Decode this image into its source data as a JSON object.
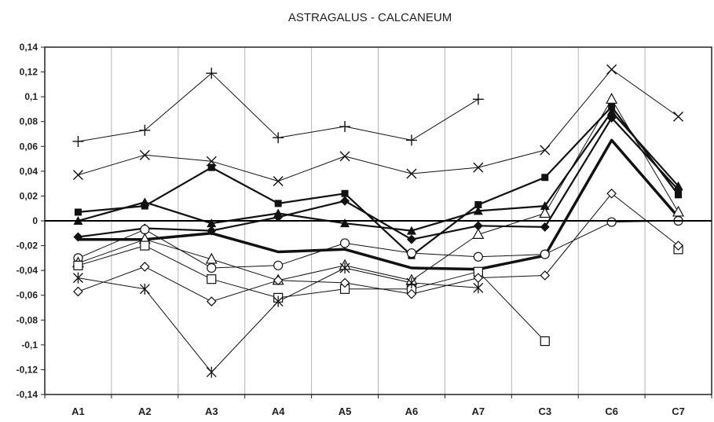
{
  "chart_data": {
    "type": "line",
    "title": "ASTRAGALUS - CALCANEUM",
    "xlabel": "",
    "ylabel": "",
    "categories": [
      "A1",
      "A2",
      "A3",
      "A4",
      "A5",
      "A6",
      "A7",
      "C3",
      "C6",
      "C7"
    ],
    "ylim": [
      -0.14,
      0.14
    ],
    "yticks": [
      -0.14,
      -0.12,
      -0.1,
      -0.08,
      -0.06,
      -0.04,
      -0.02,
      0,
      0.02,
      0.04,
      0.06,
      0.08,
      0.1,
      0.12,
      0.14
    ],
    "grid": "vertical",
    "legend": "none",
    "series": [
      {
        "marker": "plus",
        "width": 1,
        "values": [
          0.064,
          0.073,
          0.119,
          0.067,
          0.076,
          0.065,
          0.098,
          null,
          null,
          null
        ]
      },
      {
        "marker": "x",
        "width": 1,
        "values": [
          0.037,
          0.053,
          0.048,
          0.032,
          0.052,
          0.038,
          0.043,
          0.057,
          0.122,
          0.084
        ]
      },
      {
        "marker": "square-filled",
        "width": 2.2,
        "values": [
          0.007,
          0.012,
          0.043,
          0.014,
          0.022,
          -0.028,
          0.013,
          0.035,
          0.092,
          0.021
        ]
      },
      {
        "marker": "triangle-filled",
        "width": 2.2,
        "values": [
          0.0,
          0.015,
          -0.002,
          0.006,
          -0.002,
          -0.008,
          0.008,
          0.012,
          0.088,
          0.028
        ]
      },
      {
        "marker": "diamond-filled",
        "width": 2.2,
        "values": [
          -0.013,
          -0.006,
          -0.008,
          0.003,
          0.016,
          -0.015,
          -0.004,
          -0.005,
          0.083,
          0.025
        ]
      },
      {
        "marker": "none",
        "width": 3.5,
        "values": [
          -0.015,
          -0.015,
          -0.01,
          -0.025,
          -0.023,
          -0.038,
          -0.039,
          -0.028,
          0.065,
          0.003
        ]
      },
      {
        "marker": "circle-open",
        "width": 1,
        "values": [
          -0.03,
          -0.007,
          -0.038,
          -0.036,
          -0.018,
          -0.026,
          -0.029,
          -0.027,
          -0.001,
          0.0
        ]
      },
      {
        "marker": "triangle-open",
        "width": 1,
        "values": [
          -0.034,
          -0.015,
          -0.031,
          -0.048,
          -0.036,
          -0.048,
          -0.011,
          0.006,
          0.098,
          0.007
        ]
      },
      {
        "marker": "square-open",
        "width": 1,
        "values": [
          -0.036,
          -0.02,
          -0.047,
          -0.062,
          -0.055,
          -0.055,
          -0.041,
          -0.097,
          null,
          -0.023
        ]
      },
      {
        "marker": "diamond-open",
        "width": 1,
        "values": [
          -0.057,
          -0.037,
          -0.065,
          -0.048,
          -0.05,
          -0.059,
          -0.046,
          -0.044,
          0.022,
          -0.02
        ]
      },
      {
        "marker": "asterisk",
        "width": 1,
        "values": [
          -0.046,
          -0.055,
          -0.122,
          -0.065,
          -0.038,
          -0.05,
          -0.054,
          null,
          null,
          null
        ]
      }
    ]
  }
}
